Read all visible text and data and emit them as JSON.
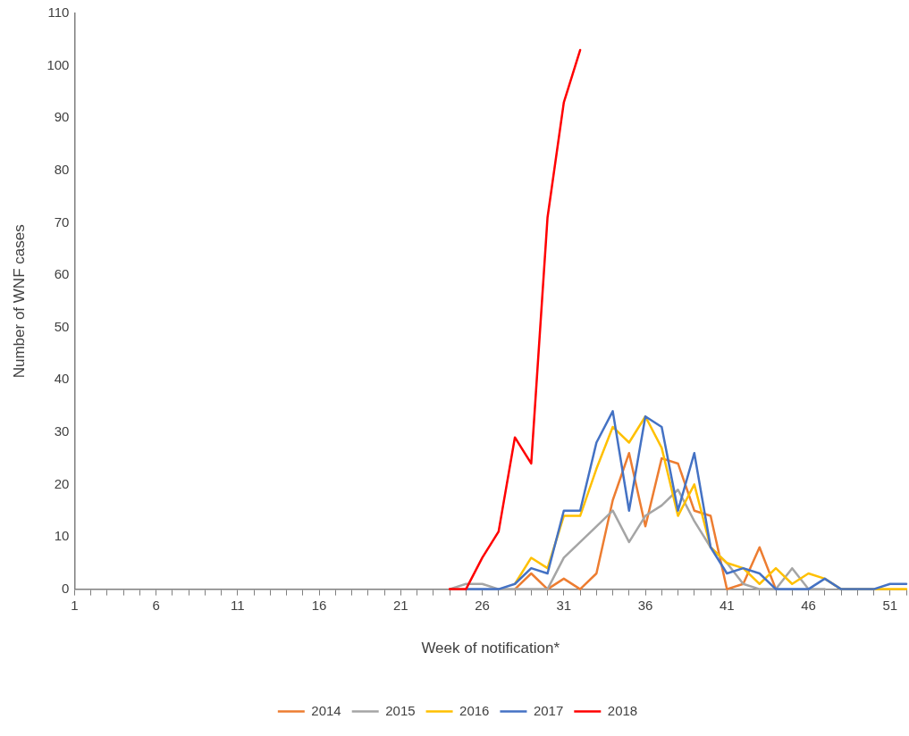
{
  "chart_data": {
    "type": "line",
    "xlabel": "Week of notification*",
    "ylabel": "Number of WNF cases",
    "x": [
      24,
      25,
      26,
      27,
      28,
      29,
      30,
      31,
      32,
      33,
      34,
      35,
      36,
      37,
      38,
      39,
      40,
      41,
      42,
      43,
      44,
      45,
      46,
      47,
      48,
      49,
      50,
      51,
      52
    ],
    "series": [
      {
        "name": "2014",
        "color": "#ed7d31",
        "values": [
          null,
          null,
          null,
          null,
          0,
          3,
          0,
          2,
          0,
          3,
          17,
          26,
          12,
          25,
          24,
          15,
          14,
          0,
          1,
          8,
          0,
          null,
          null,
          null,
          null,
          null,
          null,
          null,
          null
        ]
      },
      {
        "name": "2015",
        "color": "#a5a5a5",
        "values": [
          0,
          1,
          1,
          0,
          0,
          0,
          0,
          6,
          9,
          12,
          15,
          9,
          14,
          16,
          19,
          13,
          8,
          5,
          1,
          0,
          0,
          4,
          0,
          0,
          null,
          null,
          null,
          null,
          null
        ]
      },
      {
        "name": "2016",
        "color": "#ffc000",
        "values": [
          null,
          null,
          null,
          null,
          1,
          6,
          4,
          14,
          14,
          23,
          31,
          28,
          33,
          27,
          14,
          20,
          8,
          5,
          4,
          1,
          4,
          1,
          3,
          2,
          0,
          0,
          0,
          0,
          0
        ]
      },
      {
        "name": "2017",
        "color": "#4472c4",
        "values": [
          null,
          0,
          0,
          0,
          1,
          4,
          3,
          15,
          15,
          28,
          34,
          15,
          33,
          31,
          15,
          26,
          8,
          3,
          4,
          3,
          0,
          0,
          0,
          2,
          0,
          0,
          0,
          1,
          1
        ]
      },
      {
        "name": "2018",
        "color": "#ff0000",
        "values": [
          0,
          0,
          6,
          11,
          29,
          24,
          71,
          93,
          103,
          null,
          null,
          null,
          null,
          null,
          null,
          null,
          null,
          null,
          null,
          null,
          null,
          null,
          null,
          null,
          null,
          null,
          null,
          null,
          null
        ]
      }
    ],
    "xlim": [
      1,
      52
    ],
    "xticks": [
      1,
      {
        "value": 2,
        "label": null
      },
      {
        "value": 3,
        "label": null
      },
      {
        "value": 4,
        "label": null
      },
      {
        "value": 5,
        "label": null
      },
      6,
      {
        "value": 7,
        "label": null
      },
      {
        "value": 8,
        "label": null
      },
      {
        "value": 9,
        "label": null
      },
      {
        "value": 10,
        "label": null
      },
      11,
      {
        "value": 12,
        "label": null
      },
      {
        "value": 13,
        "label": null
      },
      {
        "value": 14,
        "label": null
      },
      {
        "value": 15,
        "label": null
      },
      16,
      {
        "value": 17,
        "label": null
      },
      {
        "value": 18,
        "label": null
      },
      {
        "value": 19,
        "label": null
      },
      {
        "value": 20,
        "label": null
      },
      21,
      {
        "value": 22,
        "label": null
      },
      {
        "value": 23,
        "label": null
      },
      {
        "value": 24,
        "label": null
      },
      {
        "value": 25,
        "label": null
      },
      26,
      {
        "value": 27,
        "label": null
      },
      {
        "value": 28,
        "label": null
      },
      {
        "value": 29,
        "label": null
      },
      {
        "value": 30,
        "label": null
      },
      31,
      {
        "value": 32,
        "label": null
      },
      {
        "value": 33,
        "label": null
      },
      {
        "value": 34,
        "label": null
      },
      {
        "value": 35,
        "label": null
      },
      36,
      {
        "value": 37,
        "label": null
      },
      {
        "value": 38,
        "label": null
      },
      {
        "value": 39,
        "label": null
      },
      {
        "value": 40,
        "label": null
      },
      41,
      {
        "value": 42,
        "label": null
      },
      {
        "value": 43,
        "label": null
      },
      {
        "value": 44,
        "label": null
      },
      {
        "value": 45,
        "label": null
      },
      46,
      {
        "value": 47,
        "label": null
      },
      {
        "value": 48,
        "label": null
      },
      {
        "value": 49,
        "label": null
      },
      {
        "value": 50,
        "label": null
      },
      51,
      {
        "value": 52,
        "label": null
      }
    ],
    "ylim": [
      0,
      110
    ],
    "yticks": [
      0,
      10,
      20,
      30,
      40,
      50,
      60,
      70,
      80,
      90,
      100,
      110
    ],
    "legend": "bottom",
    "marker": "none",
    "line_style": "solid"
  }
}
